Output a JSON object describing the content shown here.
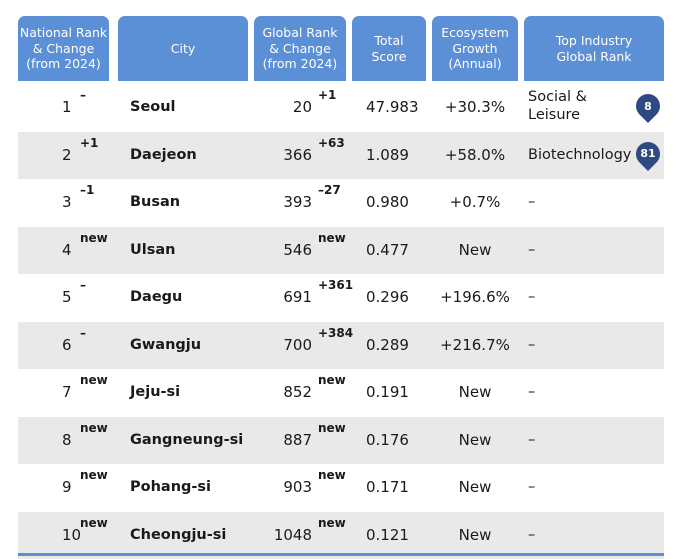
{
  "headers": {
    "national_rank": "National Rank\n& Change\n(from 2024)",
    "city": "City",
    "global_rank": "Global Rank\n& Change\n(from 2024)",
    "total_score": "Total\nScore",
    "ecosystem_growth": "Ecosystem\nGrowth\n(Annual)",
    "top_industry": "Top Industry\nGlobal Rank"
  },
  "rows": [
    {
      "rank": "1",
      "rank_change": "–",
      "city": "Seoul",
      "global_rank": "20",
      "global_change": "+1",
      "score": "47.983",
      "growth": "+30.3%",
      "industry": "Social &\nLeisure",
      "industry_rank": "8"
    },
    {
      "rank": "2",
      "rank_change": "+1",
      "city": "Daejeon",
      "global_rank": "366",
      "global_change": "+63",
      "score": "1.089",
      "growth": "+58.0%",
      "industry": "Biotechnology",
      "industry_rank": "81"
    },
    {
      "rank": "3",
      "rank_change": "–1",
      "city": "Busan",
      "global_rank": "393",
      "global_change": "–27",
      "score": "0.980",
      "growth": "+0.7%",
      "industry": "–",
      "industry_rank": ""
    },
    {
      "rank": "4",
      "rank_change": "new",
      "city": "Ulsan",
      "global_rank": "546",
      "global_change": "new",
      "score": "0.477",
      "growth": "New",
      "industry": "–",
      "industry_rank": ""
    },
    {
      "rank": "5",
      "rank_change": "–",
      "city": "Daegu",
      "global_rank": "691",
      "global_change": "+361",
      "score": "0.296",
      "growth": "+196.6%",
      "industry": "–",
      "industry_rank": ""
    },
    {
      "rank": "6",
      "rank_change": "–",
      "city": "Gwangju",
      "global_rank": "700",
      "global_change": "+384",
      "score": "0.289",
      "growth": "+216.7%",
      "industry": "–",
      "industry_rank": ""
    },
    {
      "rank": "7",
      "rank_change": "new",
      "city": "Jeju-si",
      "global_rank": "852",
      "global_change": "new",
      "score": "0.191",
      "growth": "New",
      "industry": "–",
      "industry_rank": ""
    },
    {
      "rank": "8",
      "rank_change": "new",
      "city": "Gangneung-si",
      "global_rank": "887",
      "global_change": "new",
      "score": "0.176",
      "growth": "New",
      "industry": "–",
      "industry_rank": ""
    },
    {
      "rank": "9",
      "rank_change": "new",
      "city": "Pohang-si",
      "global_rank": "903",
      "global_change": "new",
      "score": "0.171",
      "growth": "New",
      "industry": "–",
      "industry_rank": ""
    },
    {
      "rank": "10",
      "rank_change": "new",
      "city": "Cheongju-si",
      "global_rank": "1048",
      "global_change": "new",
      "score": "0.121",
      "growth": "New",
      "industry": "–",
      "industry_rank": ""
    }
  ],
  "colors": {
    "header_bg": "#5b8fd6",
    "alt_row_bg": "#e9e9ea",
    "pin": "#2d4a82"
  }
}
